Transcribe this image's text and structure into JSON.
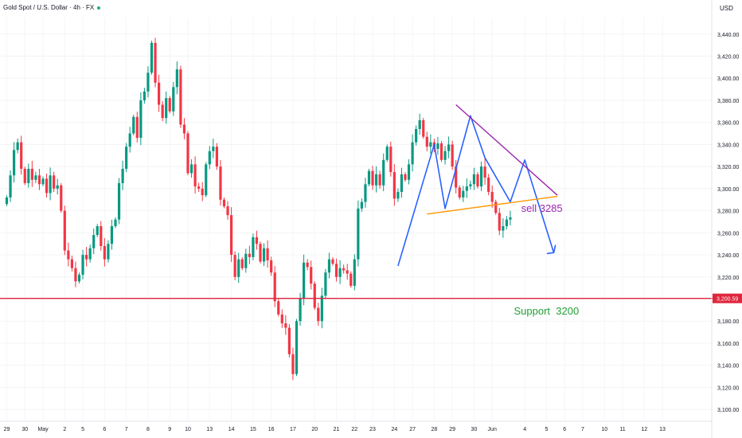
{
  "header": {
    "symbol_title": "Gold Spot / U.S. Dollar · 4h · FX",
    "currency": "USD"
  },
  "colors": {
    "up": "#089981",
    "down": "#f23645",
    "support_line": "#e0263c",
    "trend_blue": "#2962ff",
    "resistance": "#9c27b0",
    "support_trend": "#ff9800",
    "sell_text": "#9c27b0",
    "support_text": "#21a036"
  },
  "chart_data": {
    "type": "candlestick",
    "symbol": "XAUUSD",
    "timeframe": "4h",
    "ylim": [
      3090,
      3455
    ],
    "y_ticks": [
      3100,
      3120,
      3140,
      3160,
      3180,
      3200,
      3220,
      3240,
      3260,
      3280,
      3300,
      3320,
      3340,
      3360,
      3380,
      3400,
      3420,
      3440
    ],
    "y_tick_labels": [
      "3,100.00",
      "3,120.00",
      "3,140.00",
      "3,160.00",
      "3,180.00",
      "3,200.00",
      "3,220.00",
      "3,240.00",
      "3,260.00",
      "3,280.00",
      "3,300.00",
      "3,320.00",
      "3,340.00",
      "3,360.00",
      "3,380.00",
      "3,400.00",
      "3,420.00",
      "3,440.00"
    ],
    "x_ticks": [
      {
        "i": 0,
        "label": "29"
      },
      {
        "i": 5,
        "label": "30"
      },
      {
        "i": 10,
        "label": "May"
      },
      {
        "i": 16,
        "label": "2"
      },
      {
        "i": 21,
        "label": "5"
      },
      {
        "i": 27,
        "label": "6"
      },
      {
        "i": 33,
        "label": "7"
      },
      {
        "i": 39,
        "label": "8"
      },
      {
        "i": 45,
        "label": "9"
      },
      {
        "i": 50,
        "label": "10"
      },
      {
        "i": 56,
        "label": "13"
      },
      {
        "i": 62,
        "label": "14"
      },
      {
        "i": 68,
        "label": "15"
      },
      {
        "i": 73,
        "label": "16"
      },
      {
        "i": 79,
        "label": "17"
      },
      {
        "i": 85,
        "label": "20"
      },
      {
        "i": 91,
        "label": "21"
      },
      {
        "i": 96,
        "label": "22"
      },
      {
        "i": 101,
        "label": "23"
      },
      {
        "i": 107,
        "label": "24"
      },
      {
        "i": 112,
        "label": "27"
      },
      {
        "i": 118,
        "label": "28"
      },
      {
        "i": 123,
        "label": "29"
      },
      {
        "i": 129,
        "label": "30"
      },
      {
        "i": 134,
        "label": "Jun"
      },
      {
        "i": 143,
        "label": "4"
      },
      {
        "i": 149,
        "label": "5"
      },
      {
        "i": 154,
        "label": "6"
      },
      {
        "i": 159,
        "label": "7"
      },
      {
        "i": 165,
        "label": "10"
      },
      {
        "i": 170,
        "label": "11"
      },
      {
        "i": 176,
        "label": "12"
      },
      {
        "i": 181,
        "label": "13"
      }
    ],
    "close_series": [
      3292,
      3312,
      3335,
      3342,
      3318,
      3305,
      3318,
      3308,
      3312,
      3304,
      3309,
      3296,
      3312,
      3300,
      3303,
      3280,
      3244,
      3236,
      3228,
      3216,
      3222,
      3240,
      3236,
      3246,
      3258,
      3266,
      3248,
      3236,
      3250,
      3266,
      3272,
      3305,
      3318,
      3338,
      3350,
      3365,
      3346,
      3380,
      3388,
      3405,
      3432,
      3396,
      3376,
      3364,
      3382,
      3370,
      3392,
      3408,
      3358,
      3350,
      3314,
      3322,
      3302,
      3300,
      3294,
      3322,
      3334,
      3338,
      3320,
      3290,
      3284,
      3276,
      3240,
      3220,
      3236,
      3228,
      3241,
      3238,
      3256,
      3250,
      3234,
      3246,
      3235,
      3224,
      3198,
      3186,
      3178,
      3174,
      3150,
      3132,
      3180,
      3201,
      3233,
      3229,
      3214,
      3192,
      3180,
      3203,
      3224,
      3236,
      3232,
      3220,
      3228,
      3226,
      3223,
      3212,
      3236,
      3282,
      3288,
      3304,
      3316,
      3303,
      3313,
      3303,
      3326,
      3338,
      3315,
      3291,
      3297,
      3313,
      3308,
      3322,
      3342,
      3354,
      3362,
      3347,
      3338,
      3342,
      3336,
      3341,
      3326,
      3334,
      3340,
      3320,
      3301,
      3292,
      3298,
      3302,
      3304,
      3313,
      3302,
      3320,
      3310,
      3297,
      3288,
      3278,
      3262,
      3266,
      3272,
      3274
    ],
    "support_level": {
      "value": 3200.59,
      "label": "3,200.59"
    },
    "annotations": [
      {
        "kind": "blue_zigzag",
        "points": [
          [
            108,
            3230
          ],
          [
            118,
            3340
          ],
          [
            121,
            3282
          ],
          [
            128,
            3366
          ],
          [
            132,
            3328
          ],
          [
            139,
            3288
          ],
          [
            143,
            3326
          ],
          [
            151,
            3242
          ]
        ]
      },
      {
        "kind": "blue_arrow_head",
        "points": [
          [
            151,
            3242
          ]
        ]
      },
      {
        "kind": "resistance_line",
        "points": [
          [
            124,
            3376
          ],
          [
            152,
            3294
          ]
        ]
      },
      {
        "kind": "support_trendline",
        "points": [
          [
            116,
            3277
          ],
          [
            152,
            3293
          ]
        ]
      },
      {
        "kind": "sell_label",
        "text": "sell 3285",
        "at": [
          142,
          3279
        ]
      },
      {
        "kind": "support_label",
        "text": "Support  3200",
        "at": [
          140,
          3186
        ]
      }
    ]
  }
}
